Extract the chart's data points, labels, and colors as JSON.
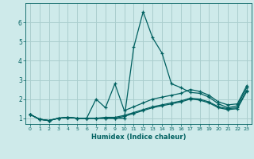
{
  "xlabel": "Humidex (Indice chaleur)",
  "background_color": "#ceeaea",
  "grid_color": "#aacece",
  "line_color": "#006060",
  "xlim": [
    -0.5,
    23.5
  ],
  "ylim": [
    0.7,
    7.0
  ],
  "yticks": [
    1,
    2,
    3,
    4,
    5,
    6
  ],
  "xticks": [
    0,
    1,
    2,
    3,
    4,
    5,
    6,
    7,
    8,
    9,
    10,
    11,
    12,
    13,
    14,
    15,
    16,
    17,
    18,
    19,
    20,
    21,
    22,
    23
  ],
  "line1_x": [
    0,
    1,
    2,
    3,
    4,
    5,
    6,
    7,
    8,
    9,
    10,
    11,
    12,
    13,
    14,
    15,
    16,
    17,
    18,
    19,
    20,
    21,
    22,
    23
  ],
  "line1_y": [
    1.2,
    0.95,
    0.88,
    1.0,
    1.05,
    1.0,
    1.0,
    1.0,
    1.0,
    1.0,
    1.0,
    4.7,
    6.55,
    5.2,
    4.4,
    2.8,
    2.6,
    2.35,
    2.3,
    2.1,
    1.75,
    1.55,
    1.65,
    2.6
  ],
  "line2_x": [
    0,
    1,
    2,
    3,
    4,
    5,
    6,
    7,
    8,
    9,
    10,
    11,
    12,
    13,
    14,
    15,
    16,
    17,
    18,
    19,
    20,
    21,
    22,
    23
  ],
  "line2_y": [
    1.2,
    0.95,
    0.88,
    1.0,
    1.05,
    1.0,
    1.0,
    2.0,
    1.55,
    2.8,
    1.4,
    1.6,
    1.8,
    2.0,
    2.1,
    2.2,
    2.3,
    2.5,
    2.4,
    2.2,
    1.85,
    1.7,
    1.75,
    2.7
  ],
  "line3_x": [
    0,
    1,
    2,
    3,
    4,
    5,
    6,
    7,
    8,
    9,
    10,
    11,
    12,
    13,
    14,
    15,
    16,
    17,
    18,
    19,
    20,
    21,
    22,
    23
  ],
  "line3_y": [
    1.2,
    0.95,
    0.88,
    1.0,
    1.05,
    1.0,
    1.0,
    1.0,
    1.0,
    1.0,
    1.1,
    1.25,
    1.4,
    1.55,
    1.65,
    1.75,
    1.85,
    2.0,
    1.95,
    1.8,
    1.55,
    1.45,
    1.5,
    2.4
  ],
  "line4_x": [
    0,
    1,
    2,
    3,
    4,
    5,
    6,
    7,
    8,
    9,
    10,
    11,
    12,
    13,
    14,
    15,
    16,
    17,
    18,
    19,
    20,
    21,
    22,
    23
  ],
  "line4_y": [
    1.2,
    0.95,
    0.88,
    1.0,
    1.05,
    1.0,
    1.0,
    1.0,
    1.05,
    1.05,
    1.15,
    1.3,
    1.45,
    1.6,
    1.7,
    1.8,
    1.9,
    2.05,
    2.0,
    1.85,
    1.6,
    1.5,
    1.55,
    2.45
  ]
}
